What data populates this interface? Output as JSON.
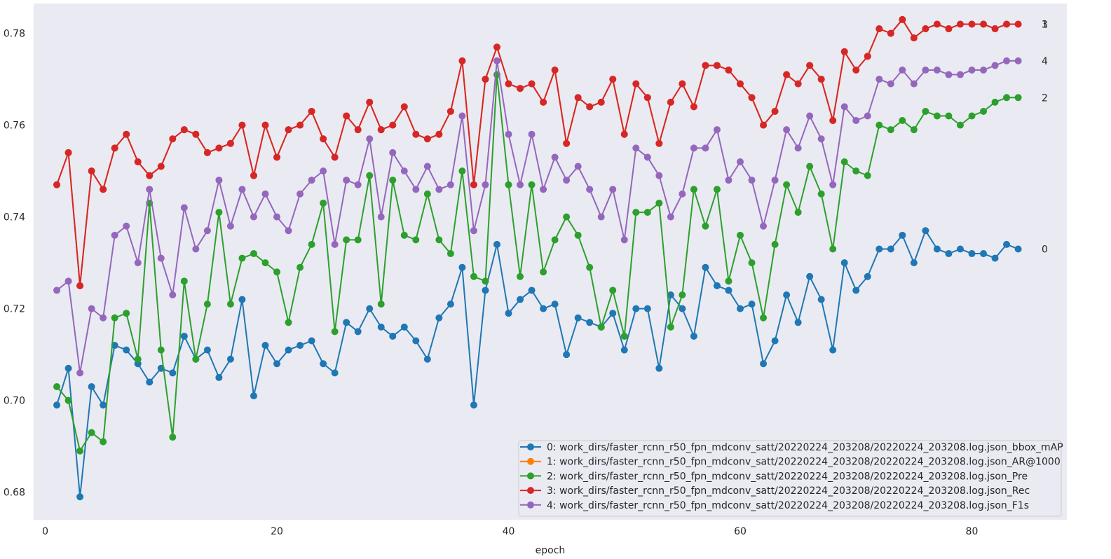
{
  "chart_data": {
    "type": "line",
    "title": "",
    "xlabel": "epoch",
    "ylabel": "",
    "xlim": [
      -1,
      88.2
    ],
    "ylim": [
      0.674,
      0.7865
    ],
    "xticks": [
      0,
      20,
      40,
      60,
      80
    ],
    "yticks": [
      0.68,
      0.7,
      0.72,
      0.74,
      0.76,
      0.78
    ],
    "ytick_labels": [
      "0.68",
      "0.70",
      "0.72",
      "0.74",
      "0.76",
      "0.78"
    ],
    "grid": false,
    "legend_position": "lower-right",
    "x": [
      1,
      2,
      3,
      4,
      5,
      6,
      7,
      8,
      9,
      10,
      11,
      12,
      13,
      14,
      15,
      16,
      17,
      18,
      19,
      20,
      21,
      22,
      23,
      24,
      25,
      26,
      27,
      28,
      29,
      30,
      31,
      32,
      33,
      34,
      35,
      36,
      37,
      38,
      39,
      40,
      41,
      42,
      43,
      44,
      45,
      46,
      47,
      48,
      49,
      50,
      51,
      52,
      53,
      54,
      55,
      56,
      57,
      58,
      59,
      60,
      61,
      62,
      63,
      64,
      65,
      66,
      67,
      68,
      69,
      70,
      71,
      72,
      73,
      74,
      75,
      76,
      77,
      78,
      79,
      80,
      81,
      82,
      83,
      84
    ],
    "series": [
      {
        "name": "0: work_dirs/faster_rcnn_r50_fpn_mdconv_satt/20220224_203208/20220224_203208.log.json_bbox_mAP",
        "end_label": "0",
        "color": "#1f77b4",
        "values": [
          0.699,
          0.707,
          0.679,
          0.703,
          0.699,
          0.712,
          0.711,
          0.708,
          0.704,
          0.707,
          0.706,
          0.714,
          0.709,
          0.711,
          0.705,
          0.709,
          0.722,
          0.701,
          0.712,
          0.708,
          0.711,
          0.712,
          0.713,
          0.708,
          0.706,
          0.717,
          0.715,
          0.72,
          0.716,
          0.714,
          0.716,
          0.713,
          0.709,
          0.718,
          0.721,
          0.729,
          0.699,
          0.724,
          0.734,
          0.719,
          0.722,
          0.724,
          0.72,
          0.721,
          0.71,
          0.718,
          0.717,
          0.716,
          0.719,
          0.711,
          0.72,
          0.72,
          0.707,
          0.723,
          0.72,
          0.714,
          0.729,
          0.725,
          0.724,
          0.72,
          0.721,
          0.708,
          0.713,
          0.723,
          0.717,
          0.727,
          0.722,
          0.711,
          0.73,
          0.724,
          0.727,
          0.733,
          0.733,
          0.736,
          0.73,
          0.737,
          0.733,
          0.732,
          0.733,
          0.732,
          0.732,
          0.731,
          0.734,
          0.733
        ]
      },
      {
        "name": "1: work_dirs/faster_rcnn_r50_fpn_mdconv_satt/20220224_203208/20220224_203208.log.json_AR@1000",
        "end_label": "1",
        "color": "#ff7f0e",
        "values": [
          0.747,
          0.754,
          0.725,
          0.75,
          0.746,
          0.755,
          0.758,
          0.752,
          0.749,
          0.751,
          0.757,
          0.759,
          0.758,
          0.754,
          0.755,
          0.756,
          0.76,
          0.749,
          0.76,
          0.753,
          0.759,
          0.76,
          0.763,
          0.757,
          0.753,
          0.762,
          0.759,
          0.765,
          0.759,
          0.76,
          0.764,
          0.758,
          0.757,
          0.758,
          0.763,
          0.774,
          0.747,
          0.77,
          0.777,
          0.769,
          0.768,
          0.769,
          0.765,
          0.772,
          0.756,
          0.766,
          0.764,
          0.765,
          0.77,
          0.758,
          0.769,
          0.766,
          0.756,
          0.765,
          0.769,
          0.764,
          0.773,
          0.773,
          0.772,
          0.769,
          0.766,
          0.76,
          0.763,
          0.771,
          0.769,
          0.773,
          0.77,
          0.761,
          0.776,
          0.772,
          0.775,
          0.781,
          0.78,
          0.783,
          0.779,
          0.781,
          0.782,
          0.781,
          0.782,
          0.782,
          0.782,
          0.781,
          0.782,
          0.782
        ]
      },
      {
        "name": "2: work_dirs/faster_rcnn_r50_fpn_mdconv_satt/20220224_203208/20220224_203208.log.json_Pre",
        "end_label": "2",
        "color": "#2ca02c",
        "values": [
          0.703,
          0.7,
          0.689,
          0.693,
          0.691,
          0.718,
          0.719,
          0.709,
          0.743,
          0.711,
          0.692,
          0.726,
          0.709,
          0.721,
          0.741,
          0.721,
          0.731,
          0.732,
          0.73,
          0.728,
          0.717,
          0.729,
          0.734,
          0.743,
          0.715,
          0.735,
          0.735,
          0.749,
          0.721,
          0.748,
          0.736,
          0.735,
          0.745,
          0.735,
          0.732,
          0.75,
          0.727,
          0.726,
          0.771,
          0.747,
          0.727,
          0.747,
          0.728,
          0.735,
          0.74,
          0.736,
          0.729,
          0.716,
          0.724,
          0.714,
          0.741,
          0.741,
          0.743,
          0.716,
          0.723,
          0.746,
          0.738,
          0.746,
          0.726,
          0.736,
          0.73,
          0.718,
          0.734,
          0.747,
          0.741,
          0.751,
          0.745,
          0.733,
          0.752,
          0.75,
          0.749,
          0.76,
          0.759,
          0.761,
          0.759,
          0.763,
          0.762,
          0.762,
          0.76,
          0.762,
          0.763,
          0.765,
          0.766,
          0.766
        ]
      },
      {
        "name": "3: work_dirs/faster_rcnn_r50_fpn_mdconv_satt/20220224_203208/20220224_203208.log.json_Rec",
        "end_label": "3",
        "color": "#d62728",
        "values": [
          0.747,
          0.754,
          0.725,
          0.75,
          0.746,
          0.755,
          0.758,
          0.752,
          0.749,
          0.751,
          0.757,
          0.759,
          0.758,
          0.754,
          0.755,
          0.756,
          0.76,
          0.749,
          0.76,
          0.753,
          0.759,
          0.76,
          0.763,
          0.757,
          0.753,
          0.762,
          0.759,
          0.765,
          0.759,
          0.76,
          0.764,
          0.758,
          0.757,
          0.758,
          0.763,
          0.774,
          0.747,
          0.77,
          0.777,
          0.769,
          0.768,
          0.769,
          0.765,
          0.772,
          0.756,
          0.766,
          0.764,
          0.765,
          0.77,
          0.758,
          0.769,
          0.766,
          0.756,
          0.765,
          0.769,
          0.764,
          0.773,
          0.773,
          0.772,
          0.769,
          0.766,
          0.76,
          0.763,
          0.771,
          0.769,
          0.773,
          0.77,
          0.761,
          0.776,
          0.772,
          0.775,
          0.781,
          0.78,
          0.783,
          0.779,
          0.781,
          0.782,
          0.781,
          0.782,
          0.782,
          0.782,
          0.781,
          0.782,
          0.782
        ]
      },
      {
        "name": "4: work_dirs/faster_rcnn_r50_fpn_mdconv_satt/20220224_203208/20220224_203208.log.json_F1s",
        "end_label": "4",
        "color": "#9467bd",
        "values": [
          0.724,
          0.726,
          0.706,
          0.72,
          0.718,
          0.736,
          0.738,
          0.73,
          0.746,
          0.731,
          0.723,
          0.742,
          0.733,
          0.737,
          0.748,
          0.738,
          0.746,
          0.74,
          0.745,
          0.74,
          0.737,
          0.745,
          0.748,
          0.75,
          0.734,
          0.748,
          0.747,
          0.757,
          0.74,
          0.754,
          0.75,
          0.746,
          0.751,
          0.746,
          0.747,
          0.762,
          0.737,
          0.747,
          0.774,
          0.758,
          0.747,
          0.758,
          0.746,
          0.753,
          0.748,
          0.751,
          0.746,
          0.74,
          0.746,
          0.735,
          0.755,
          0.753,
          0.749,
          0.74,
          0.745,
          0.755,
          0.755,
          0.759,
          0.748,
          0.752,
          0.748,
          0.738,
          0.748,
          0.759,
          0.755,
          0.762,
          0.757,
          0.747,
          0.764,
          0.761,
          0.762,
          0.77,
          0.769,
          0.772,
          0.769,
          0.772,
          0.772,
          0.771,
          0.771,
          0.772,
          0.772,
          0.773,
          0.774,
          0.774
        ]
      }
    ]
  }
}
